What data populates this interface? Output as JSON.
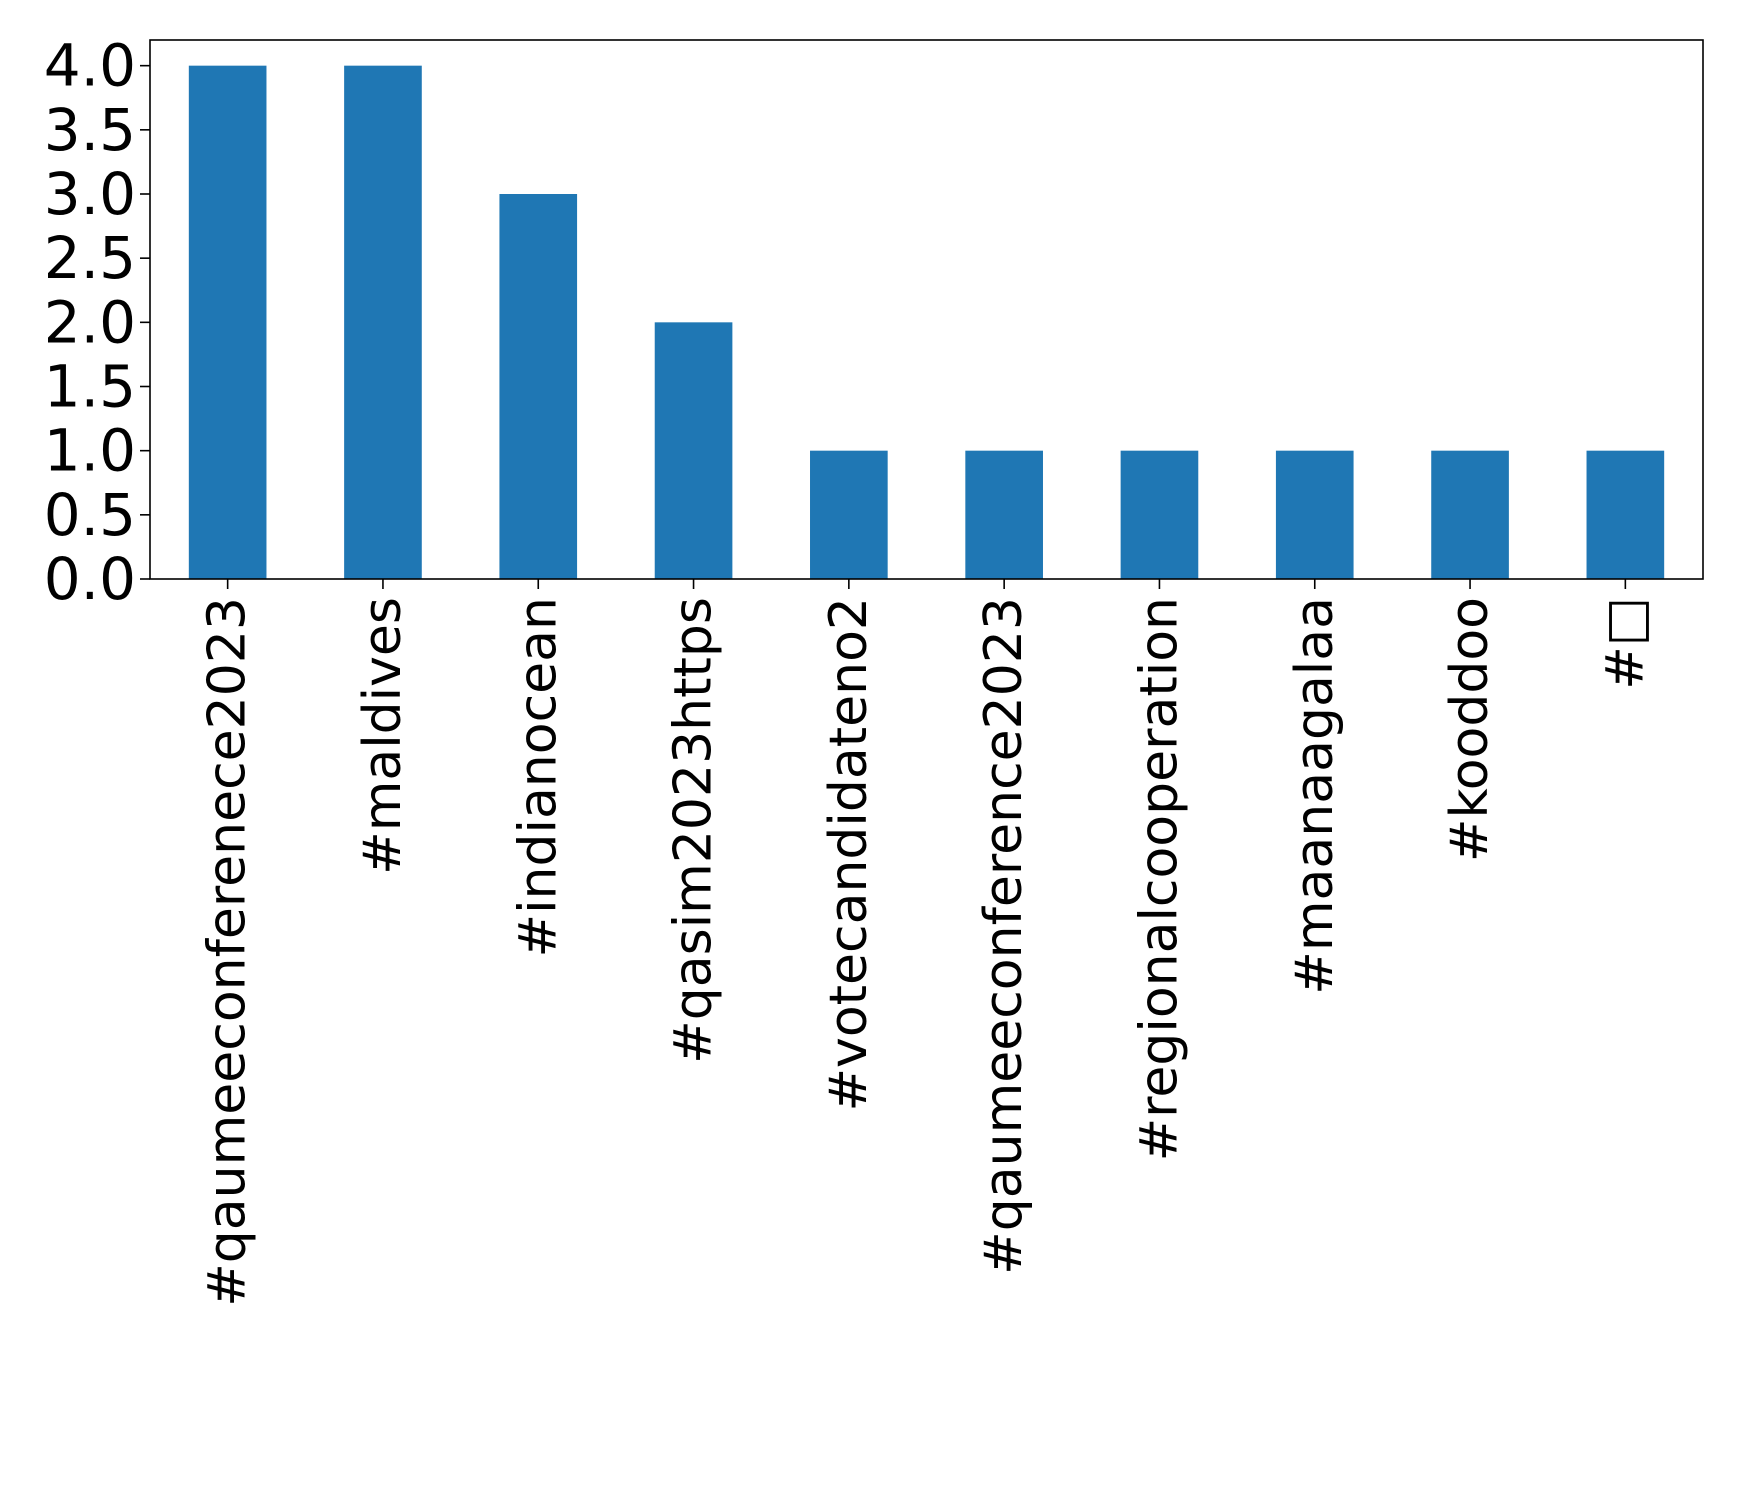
{
  "chart_data": {
    "type": "bar",
    "title": "",
    "xlabel": "",
    "ylabel": "",
    "categories": [
      "#qaumeeconfereneсe2023",
      "#maldives",
      "#indianocean",
      "#qasim2023https",
      "#votecandidateno2",
      "#qaumeeconference2023",
      "#regionalcooperation",
      "#maanaagalaa",
      "#kooddoo",
      "#□"
    ],
    "values": [
      4,
      4,
      3,
      2,
      1,
      1,
      1,
      1,
      1,
      1
    ],
    "ylim": [
      0,
      4.2
    ],
    "yticks": [
      0.0,
      0.5,
      1.0,
      1.5,
      2.0,
      2.5,
      3.0,
      3.5,
      4.0
    ],
    "ytick_labels": [
      "0.0",
      "0.5",
      "1.0",
      "1.5",
      "2.0",
      "2.5",
      "3.0",
      "3.5",
      "4.0"
    ],
    "bar_color": "#1f77b4",
    "grid": false,
    "legend": "none"
  }
}
